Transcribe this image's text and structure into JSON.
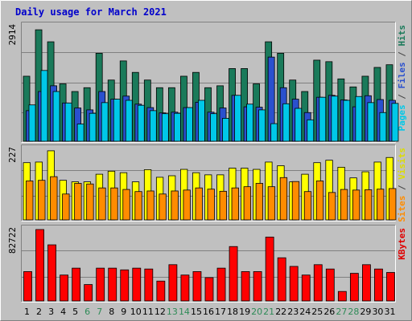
{
  "chart_data": {
    "type": "bar",
    "title": "Daily usage for March 2021",
    "categories": [
      "1",
      "2",
      "3",
      "4",
      "5",
      "6",
      "7",
      "8",
      "9",
      "10",
      "11",
      "12",
      "13",
      "14",
      "15",
      "16",
      "17",
      "18",
      "19",
      "20",
      "21",
      "22",
      "23",
      "24",
      "25",
      "26",
      "27",
      "28",
      "29",
      "30",
      "31"
    ],
    "weekend_days": [
      "6",
      "7",
      "13",
      "14",
      "20",
      "21",
      "27",
      "28"
    ],
    "panels": [
      {
        "id": "hits",
        "max_label": "2914",
        "ymax": 3000,
        "side_labels": [
          {
            "text": "Pages",
            "color": "#00c8e8"
          },
          {
            "text": " / ",
            "color": "#444444"
          },
          {
            "text": "Files",
            "color": "#2a50ce"
          },
          {
            "text": " / ",
            "color": "#444444"
          },
          {
            "text": "Hits",
            "color": "#1a7a5a"
          }
        ],
        "series": [
          {
            "name": "Hits",
            "color": "#1a7a5a",
            "values": [
              1700,
              2914,
              2600,
              1500,
              1300,
              1400,
              2300,
              1600,
              2100,
              1800,
              1600,
              1400,
              1400,
              1700,
              1800,
              1400,
              1450,
              1900,
              1900,
              1500,
              2600,
              2300,
              1600,
              1300,
              2120,
              2080,
              1630,
              1420,
              1700,
              1930,
              2000
            ]
          },
          {
            "name": "Files",
            "color": "#2a50ce",
            "values": [
              800,
              1300,
              1450,
              1000,
              870,
              820,
              1300,
              1100,
              1180,
              970,
              880,
              740,
              760,
              880,
              1020,
              760,
              870,
              1200,
              900,
              890,
              2200,
              1400,
              1100,
              750,
              1150,
              1200,
              1080,
              900,
              1190,
              1090,
              1070
            ]
          },
          {
            "name": "Pages",
            "color": "#00c8e8",
            "values": [
              950,
              1850,
              1300,
              1000,
              450,
              730,
              1010,
              1100,
              1070,
              940,
              800,
              720,
              730,
              880,
              1070,
              720,
              600,
              1200,
              970,
              820,
              460,
              980,
              860,
              560,
              1150,
              1180,
              1070,
              1170,
              1010,
              750,
              990
            ]
          }
        ]
      },
      {
        "id": "visits",
        "max_label": "227",
        "ymax": 232,
        "side_labels": [
          {
            "text": "Sites",
            "color": "#ff8c00"
          },
          {
            "text": " / ",
            "color": "#444444"
          },
          {
            "text": "Visits",
            "color": "#dddd00"
          }
        ],
        "series": [
          {
            "name": "Visits",
            "color": "#ffff00",
            "values": [
              188,
              190,
              227,
              130,
              125,
              125,
              150,
              160,
              155,
              125,
              165,
              140,
              145,
              166,
              155,
              148,
              148,
              170,
              170,
              166,
              190,
              178,
              125,
              150,
              188,
              196,
              173,
              138,
              158,
              190,
              205
            ]
          },
          {
            "name": "Sites",
            "color": "#ff8c00",
            "values": [
              128,
              130,
              142,
              85,
              120,
              118,
              105,
              105,
              100,
              93,
              95,
              85,
              95,
              98,
              105,
              101,
              94,
              105,
              109,
              120,
              109,
              139,
              126,
              93,
              128,
              90,
              100,
              98,
              99,
              101,
              103
            ]
          }
        ]
      },
      {
        "id": "kbytes",
        "max_label": "82722",
        "ymax": 82722,
        "side_labels": [
          {
            "text": "KBytes",
            "color": "#e00000"
          }
        ],
        "series": [
          {
            "name": "KBytes",
            "color": "#ff0000",
            "values": [
              34000,
              82722,
              65000,
              30000,
              38000,
              19000,
              38000,
              38000,
              36000,
              38000,
              37000,
              23000,
              42000,
              30000,
              34000,
              27000,
              38000,
              63000,
              34000,
              34000,
              74000,
              50000,
              40000,
              30000,
              42000,
              37000,
              11000,
              32000,
              42000,
              37000,
              33000
            ]
          }
        ]
      }
    ],
    "colors": {
      "background": "#c0c0c0",
      "frame_light": "#ffffff",
      "frame_dark": "#808080",
      "panel_fill": "#c0c0c0",
      "grid": "#808080",
      "weekday_label": "#000000",
      "weekend_label": "#2e8b57"
    }
  }
}
